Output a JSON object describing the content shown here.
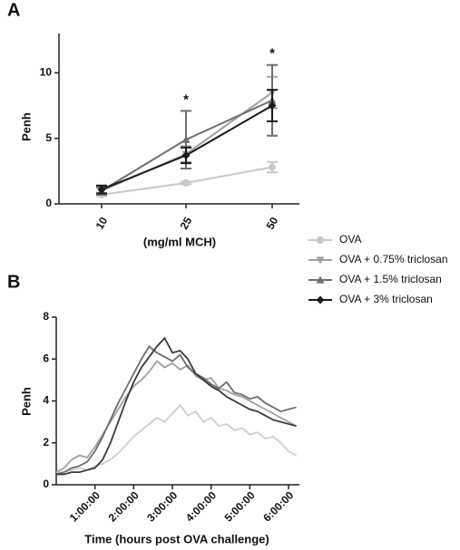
{
  "chart_data": [
    {
      "type": "line",
      "label": "A",
      "y_label": "Penh",
      "x_label": "(mg/ml MCH)",
      "categories": [
        "10",
        "25",
        "50"
      ],
      "ylim": [
        0,
        13
      ],
      "yticks": [
        0,
        5,
        10
      ],
      "series": [
        {
          "name": "OVA",
          "color": "#c8c8c8",
          "marker": "circle",
          "values": [
            0.7,
            1.6,
            2.8
          ],
          "errors": [
            0.1,
            0.1,
            0.4
          ]
        },
        {
          "name": "OVA + 0.75% triclosan",
          "color": "#a0a0a0",
          "marker": "triangle-down",
          "values": [
            1.0,
            3.8,
            8.5
          ],
          "errors": [
            0.2,
            0.6,
            1.2
          ]
        },
        {
          "name": "OVA + 1.5% triclosan",
          "color": "#6e6e6e",
          "marker": "triangle-up",
          "values": [
            1.0,
            4.9,
            7.9
          ],
          "errors": [
            0.3,
            2.2,
            2.7
          ]
        },
        {
          "name": "OVA + 3% triclosan",
          "color": "#1a1a1a",
          "marker": "diamond",
          "values": [
            1.1,
            3.7,
            7.5
          ],
          "errors": [
            0.3,
            0.6,
            1.2
          ]
        }
      ],
      "annotations": [
        {
          "text": "*",
          "x": "25"
        },
        {
          "text": "*",
          "x": "50"
        }
      ]
    },
    {
      "type": "line",
      "label": "B",
      "y_label": "Penh",
      "x_label": "Time (hours post OVA challenge)",
      "xlim": [
        0,
        6.28
      ],
      "ylim": [
        0,
        8
      ],
      "yticks": [
        0,
        2,
        4,
        6,
        8
      ],
      "xticks": [
        {
          "value": 1,
          "label": "1:00:00"
        },
        {
          "value": 2,
          "label": "2:00:00"
        },
        {
          "value": 3,
          "label": "3:00:00"
        },
        {
          "value": 4,
          "label": "4:00:00"
        },
        {
          "value": 5,
          "label": "5:00:00"
        },
        {
          "value": 6,
          "label": "6:00:00"
        }
      ],
      "x": [
        0,
        0.2,
        0.4,
        0.6,
        0.8,
        1.0,
        1.2,
        1.4,
        1.6,
        1.8,
        2.0,
        2.2,
        2.4,
        2.6,
        2.8,
        3.0,
        3.2,
        3.4,
        3.6,
        3.8,
        4.0,
        4.2,
        4.4,
        4.6,
        4.8,
        5.0,
        5.2,
        5.4,
        5.6,
        5.8,
        6.0,
        6.2
      ],
      "series": [
        {
          "color": "#cfcfcf",
          "values": [
            0.6,
            0.6,
            0.7,
            0.8,
            0.7,
            0.9,
            1.0,
            1.2,
            1.5,
            1.9,
            2.3,
            2.6,
            2.9,
            3.2,
            3.0,
            3.4,
            3.8,
            3.3,
            3.5,
            3.0,
            3.2,
            2.8,
            2.9,
            2.6,
            2.7,
            2.4,
            2.5,
            2.2,
            2.3,
            2.0,
            1.6,
            1.4
          ]
        },
        {
          "color": "#a0a0a0",
          "values": [
            0.6,
            0.8,
            1.2,
            1.4,
            1.3,
            1.8,
            2.4,
            3.0,
            3.6,
            4.2,
            4.7,
            5.0,
            5.4,
            5.9,
            5.6,
            5.8,
            5.5,
            5.7,
            5.2,
            5.0,
            5.1,
            4.6,
            4.5,
            4.3,
            4.2,
            4.0,
            3.8,
            3.6,
            3.4,
            3.2,
            3.0,
            2.8
          ]
        },
        {
          "color": "#6e6e6e",
          "values": [
            0.5,
            0.6,
            0.8,
            0.9,
            1.1,
            1.6,
            2.3,
            3.1,
            3.9,
            4.6,
            5.3,
            6.0,
            6.6,
            6.3,
            6.1,
            5.9,
            6.2,
            5.6,
            5.3,
            5.1,
            4.8,
            4.6,
            4.9,
            4.4,
            4.3,
            4.1,
            4.2,
            3.9,
            3.7,
            3.5,
            3.6,
            3.7
          ]
        },
        {
          "color": "#3a3a3a",
          "values": [
            0.5,
            0.5,
            0.6,
            0.6,
            0.7,
            0.8,
            1.2,
            2.0,
            3.0,
            4.0,
            4.9,
            5.6,
            6.1,
            6.6,
            7.0,
            6.3,
            6.4,
            6.0,
            5.3,
            5.0,
            4.7,
            4.5,
            4.2,
            4.0,
            3.8,
            3.6,
            3.5,
            3.3,
            3.1,
            3.0,
            2.9,
            2.8
          ]
        }
      ]
    }
  ]
}
